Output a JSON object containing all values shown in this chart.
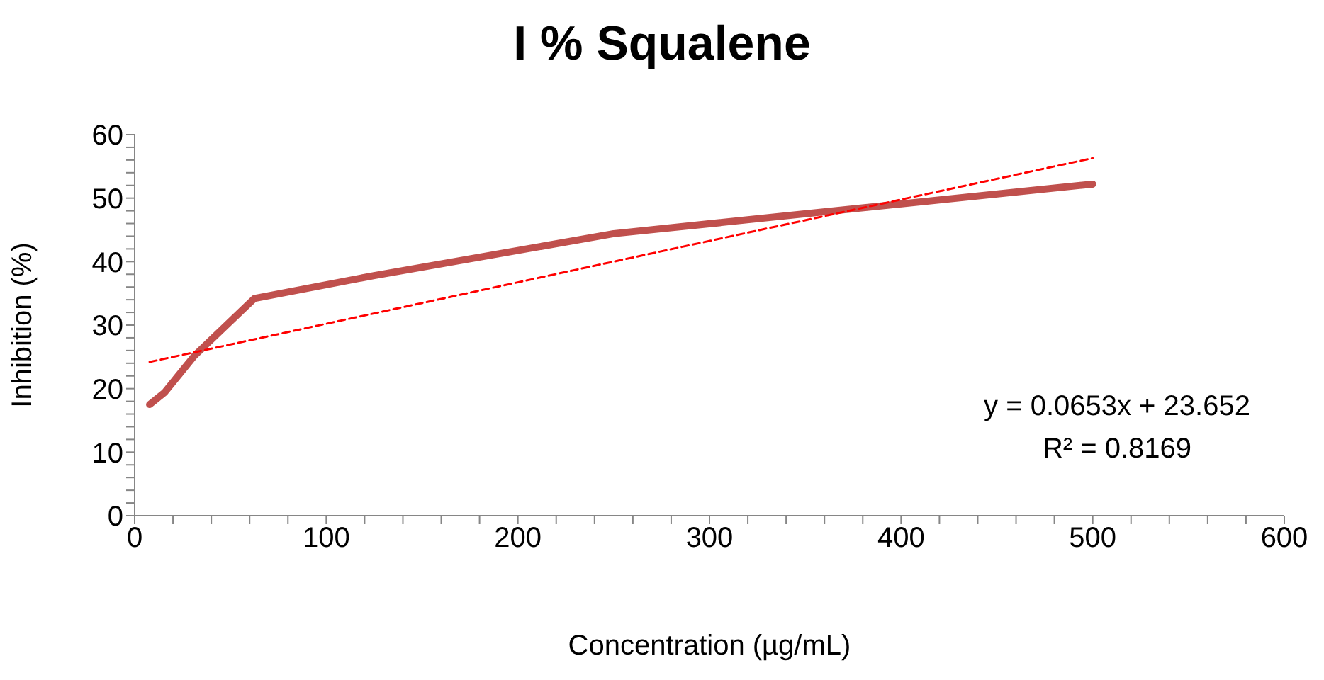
{
  "chart_data": {
    "type": "line",
    "title": "I % Squalene",
    "xlabel": "Concentration (µg/mL)",
    "ylabel": "Inhibition (%)",
    "marker": "none",
    "xlim": [
      0,
      600
    ],
    "ylim": [
      0,
      60
    ],
    "xticks": [
      0,
      {
        "value": 20,
        "label": null
      },
      {
        "value": 40,
        "label": null
      },
      {
        "value": 60,
        "label": null
      },
      {
        "value": 80,
        "label": null
      },
      100,
      {
        "value": 120,
        "label": null
      },
      {
        "value": 140,
        "label": null
      },
      {
        "value": 160,
        "label": null
      },
      {
        "value": 180,
        "label": null
      },
      200,
      {
        "value": 220,
        "label": null
      },
      {
        "value": 240,
        "label": null
      },
      {
        "value": 260,
        "label": null
      },
      {
        "value": 280,
        "label": null
      },
      300,
      {
        "value": 320,
        "label": null
      },
      {
        "value": 340,
        "label": null
      },
      {
        "value": 360,
        "label": null
      },
      {
        "value": 380,
        "label": null
      },
      400,
      {
        "value": 420,
        "label": null
      },
      {
        "value": 440,
        "label": null
      },
      {
        "value": 460,
        "label": null
      },
      {
        "value": 480,
        "label": null
      },
      500,
      {
        "value": 520,
        "label": null
      },
      {
        "value": 540,
        "label": null
      },
      {
        "value": 560,
        "label": null
      },
      {
        "value": 580,
        "label": null
      },
      600
    ],
    "yticks": [
      0,
      {
        "value": 2,
        "label": null
      },
      {
        "value": 4,
        "label": null
      },
      {
        "value": 6,
        "label": null
      },
      {
        "value": 8,
        "label": null
      },
      10,
      {
        "value": 12,
        "label": null
      },
      {
        "value": 14,
        "label": null
      },
      {
        "value": 16,
        "label": null
      },
      {
        "value": 18,
        "label": null
      },
      20,
      {
        "value": 22,
        "label": null
      },
      {
        "value": 24,
        "label": null
      },
      {
        "value": 26,
        "label": null
      },
      {
        "value": 28,
        "label": null
      },
      30,
      {
        "value": 32,
        "label": null
      },
      {
        "value": 34,
        "label": null
      },
      {
        "value": 36,
        "label": null
      },
      {
        "value": 38,
        "label": null
      },
      40,
      {
        "value": 42,
        "label": null
      },
      {
        "value": 44,
        "label": null
      },
      {
        "value": 46,
        "label": null
      },
      {
        "value": 48,
        "label": null
      },
      50,
      {
        "value": 52,
        "label": null
      },
      {
        "value": 54,
        "label": null
      },
      {
        "value": 56,
        "label": null
      },
      {
        "value": 58,
        "label": null
      },
      60
    ],
    "series": [
      {
        "color": "#c0504d",
        "line_style": "solid",
        "x": [
          7.8,
          15.6,
          31.25,
          62.5,
          125,
          250,
          500
        ],
        "values": [
          17.5,
          19.4,
          25.2,
          34.2,
          37.8,
          44.4,
          52.2
        ]
      },
      {
        "color": "#ff0000",
        "line_style": "dashed",
        "x": [
          7.8,
          500
        ],
        "values": [
          24.2,
          56.3
        ]
      }
    ],
    "annotations": [
      "y = 0.0653x + 23.652",
      "R² = 0.8169"
    ]
  }
}
